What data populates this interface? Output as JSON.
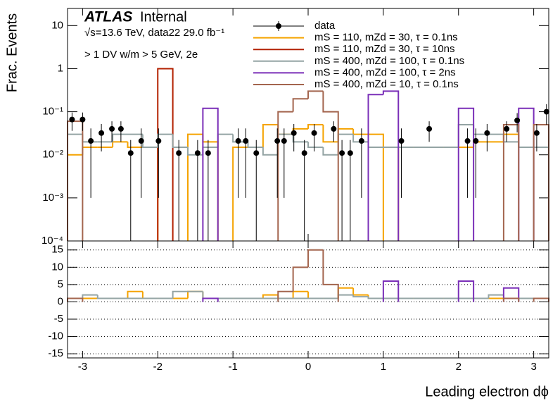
{
  "chart_data": [
    {
      "type": "histogram",
      "title": "ATLAS",
      "subtitle": "Internal",
      "annotations": [
        "√s=13.6 TeV, data22 29.0 fb⁻¹",
        "> 1 DV w/m > 5 GeV, 2e"
      ],
      "y_label": "Frac. Events",
      "log_y": true,
      "xlim": [
        -3.2,
        3.2
      ],
      "xticks": [
        -3,
        -2,
        -1,
        0,
        1,
        2,
        3
      ],
      "ylim": [
        0.0001,
        25
      ],
      "yticks": [
        {
          "value": 0.0001,
          "label": "10⁻⁴"
        },
        {
          "value": 0.001,
          "label": "10⁻³"
        },
        {
          "value": 0.01,
          "label": "10⁻²"
        },
        {
          "value": 0.1,
          "label": "10⁻¹"
        },
        1,
        10
      ],
      "bins": [
        -3.2,
        -3.0,
        -2.8,
        -2.6,
        -2.4,
        -2.2,
        -2.0,
        -1.8,
        -1.6,
        -1.4,
        -1.2,
        -1.0,
        -0.8,
        -0.6,
        -0.4,
        -0.2,
        0.0,
        0.2,
        0.4,
        0.6,
        0.8,
        1.0,
        1.2,
        1.4,
        1.6,
        1.8,
        2.0,
        2.2,
        2.4,
        2.6,
        2.8,
        3.0,
        3.2
      ],
      "data": {
        "name": "data",
        "color": "#000000",
        "x": [
          -3.14,
          -3.0,
          -2.89,
          -2.75,
          -2.61,
          -2.49,
          -2.36,
          -2.22,
          -1.99,
          -1.72,
          -1.47,
          -1.33,
          -0.93,
          -0.83,
          -0.69,
          -0.41,
          -0.32,
          -0.19,
          -0.05,
          0.08,
          0.34,
          0.45,
          0.56,
          0.71,
          1.24,
          1.61,
          2.12,
          2.23,
          2.38,
          2.64,
          2.78,
          3.04,
          3.17
        ],
        "values": [
          0.066,
          0.066,
          0.021,
          0.032,
          0.04,
          0.04,
          0.011,
          0.021,
          0.021,
          0.011,
          0.011,
          0.011,
          0.021,
          0.021,
          0.011,
          0.021,
          0.021,
          0.032,
          0.011,
          0.032,
          0.04,
          0.011,
          0.011,
          0.021,
          0.021,
          0.04,
          0.021,
          0.021,
          0.032,
          0.04,
          0.063,
          0.032,
          0.1
        ],
        "errors": [
          0.03,
          0.03,
          0.02,
          0.02,
          0.02,
          0.02,
          0.011,
          0.02,
          0.02,
          0.011,
          0.011,
          0.011,
          0.02,
          0.02,
          0.011,
          0.02,
          0.02,
          0.02,
          0.011,
          0.02,
          0.02,
          0.011,
          0.011,
          0.02,
          0.02,
          0.02,
          0.02,
          0.02,
          0.02,
          0.02,
          0.03,
          0.02,
          0.05
        ]
      },
      "series": [
        {
          "name": "mS = 110, mZd = 30, τ = 0.1ns",
          "color": "#f5a300",
          "values": [
            0.01,
            0.015,
            0.015,
            0.02,
            0.015,
            0.015,
            null,
            null,
            0.03,
            0.02,
            null,
            0.015,
            0.015,
            0.05,
            0.03,
            0.04,
            0.05,
            0.02,
            0.04,
            0.03,
            0.03,
            null,
            0.015,
            0.015,
            0.015,
            0.015,
            0.015,
            0.02,
            0.02,
            0.03,
            0.015,
            0.015
          ]
        },
        {
          "name": "mS = 110, mZd = 30, τ = 10ns",
          "color": "#b32100",
          "values": [
            null,
            null,
            null,
            null,
            null,
            null,
            1.0,
            null,
            null,
            null,
            null,
            null,
            null,
            null,
            null,
            null,
            null,
            null,
            null,
            null,
            null,
            null,
            null,
            null,
            null,
            null,
            null,
            null,
            null,
            null,
            null,
            null
          ]
        },
        {
          "name": "mS = 400, mZd = 100, τ = 0.1ns",
          "color": "#94a4a4",
          "values": [
            0.03,
            0.02,
            0.02,
            0.03,
            0.03,
            0.015,
            0.03,
            0.015,
            0.01,
            0.015,
            0.03,
            0.02,
            0.015,
            0.01,
            0.03,
            0.02,
            0.015,
            0.01,
            0.03,
            0.02,
            0.015,
            0.015,
            0.015,
            0.015,
            0.015,
            0.015,
            0.05,
            0.03,
            0.03,
            0.02,
            0.015,
            0.015
          ]
        },
        {
          "name": "mS = 400, mZd = 100, τ = 2ns",
          "color": "#7a2fb8",
          "values": [
            null,
            null,
            null,
            null,
            null,
            null,
            null,
            null,
            null,
            0.12,
            null,
            null,
            null,
            null,
            null,
            null,
            null,
            null,
            null,
            null,
            0.25,
            0.3,
            null,
            null,
            null,
            null,
            0.12,
            null,
            null,
            null,
            0.12,
            null
          ]
        },
        {
          "name": "mS = 400, mZd = 10, τ = 0.1ns",
          "color": "#a3654e",
          "values": [
            0.06,
            null,
            null,
            null,
            null,
            null,
            null,
            null,
            null,
            null,
            null,
            null,
            null,
            null,
            0.1,
            0.2,
            0.3,
            0.1,
            null,
            null,
            null,
            null,
            null,
            null,
            null,
            null,
            null,
            null,
            null,
            0.05,
            null,
            0.05
          ]
        }
      ]
    },
    {
      "type": "histogram",
      "x_label": "Leading electron dϕ",
      "grid": true,
      "xlim": [
        -3.2,
        3.2
      ],
      "xticks": [
        -3,
        -2,
        -1,
        0,
        1,
        2,
        3
      ],
      "ylim": [
        -16.2,
        17.6
      ],
      "yticks": [
        -15,
        -10,
        -5,
        0,
        5,
        10,
        15
      ],
      "bins": [
        -3.2,
        -3.0,
        -2.8,
        -2.6,
        -2.4,
        -2.2,
        -2.0,
        -1.8,
        -1.6,
        -1.4,
        -1.2,
        -1.0,
        -0.8,
        -0.6,
        -0.4,
        -0.2,
        0.0,
        0.2,
        0.4,
        0.6,
        0.8,
        1.0,
        1.2,
        1.4,
        1.6,
        1.8,
        2.0,
        2.2,
        2.4,
        2.6,
        2.8,
        3.0,
        3.2
      ],
      "series": [
        {
          "color": "#f5a300",
          "values": [
            1,
            1,
            1,
            1,
            3,
            1,
            1,
            1,
            3,
            1,
            1,
            1,
            1,
            2,
            1,
            3,
            1,
            1,
            4,
            2,
            1,
            1,
            1,
            1,
            1,
            1,
            1,
            1,
            1,
            1,
            1,
            1
          ]
        },
        {
          "color": "#94a4a4",
          "values": [
            1,
            2,
            1,
            1,
            1,
            1,
            1,
            3,
            3,
            1,
            1,
            1,
            1,
            1,
            1,
            1,
            1,
            1,
            2,
            1.5,
            1,
            1,
            1,
            1,
            1,
            1,
            1,
            1,
            2,
            1,
            1,
            1
          ]
        },
        {
          "color": "#7a2fb8",
          "values": [
            null,
            null,
            null,
            null,
            null,
            null,
            null,
            null,
            null,
            1,
            null,
            null,
            null,
            null,
            null,
            null,
            null,
            null,
            null,
            null,
            null,
            6,
            null,
            null,
            null,
            null,
            6,
            null,
            null,
            4,
            null,
            null
          ]
        },
        {
          "color": "#a3654e",
          "values": [
            1,
            null,
            null,
            null,
            null,
            null,
            null,
            null,
            null,
            null,
            null,
            null,
            null,
            null,
            3,
            10,
            15,
            5,
            null,
            null,
            null,
            null,
            null,
            null,
            null,
            null,
            null,
            null,
            null,
            1,
            null,
            1
          ]
        }
      ]
    }
  ]
}
